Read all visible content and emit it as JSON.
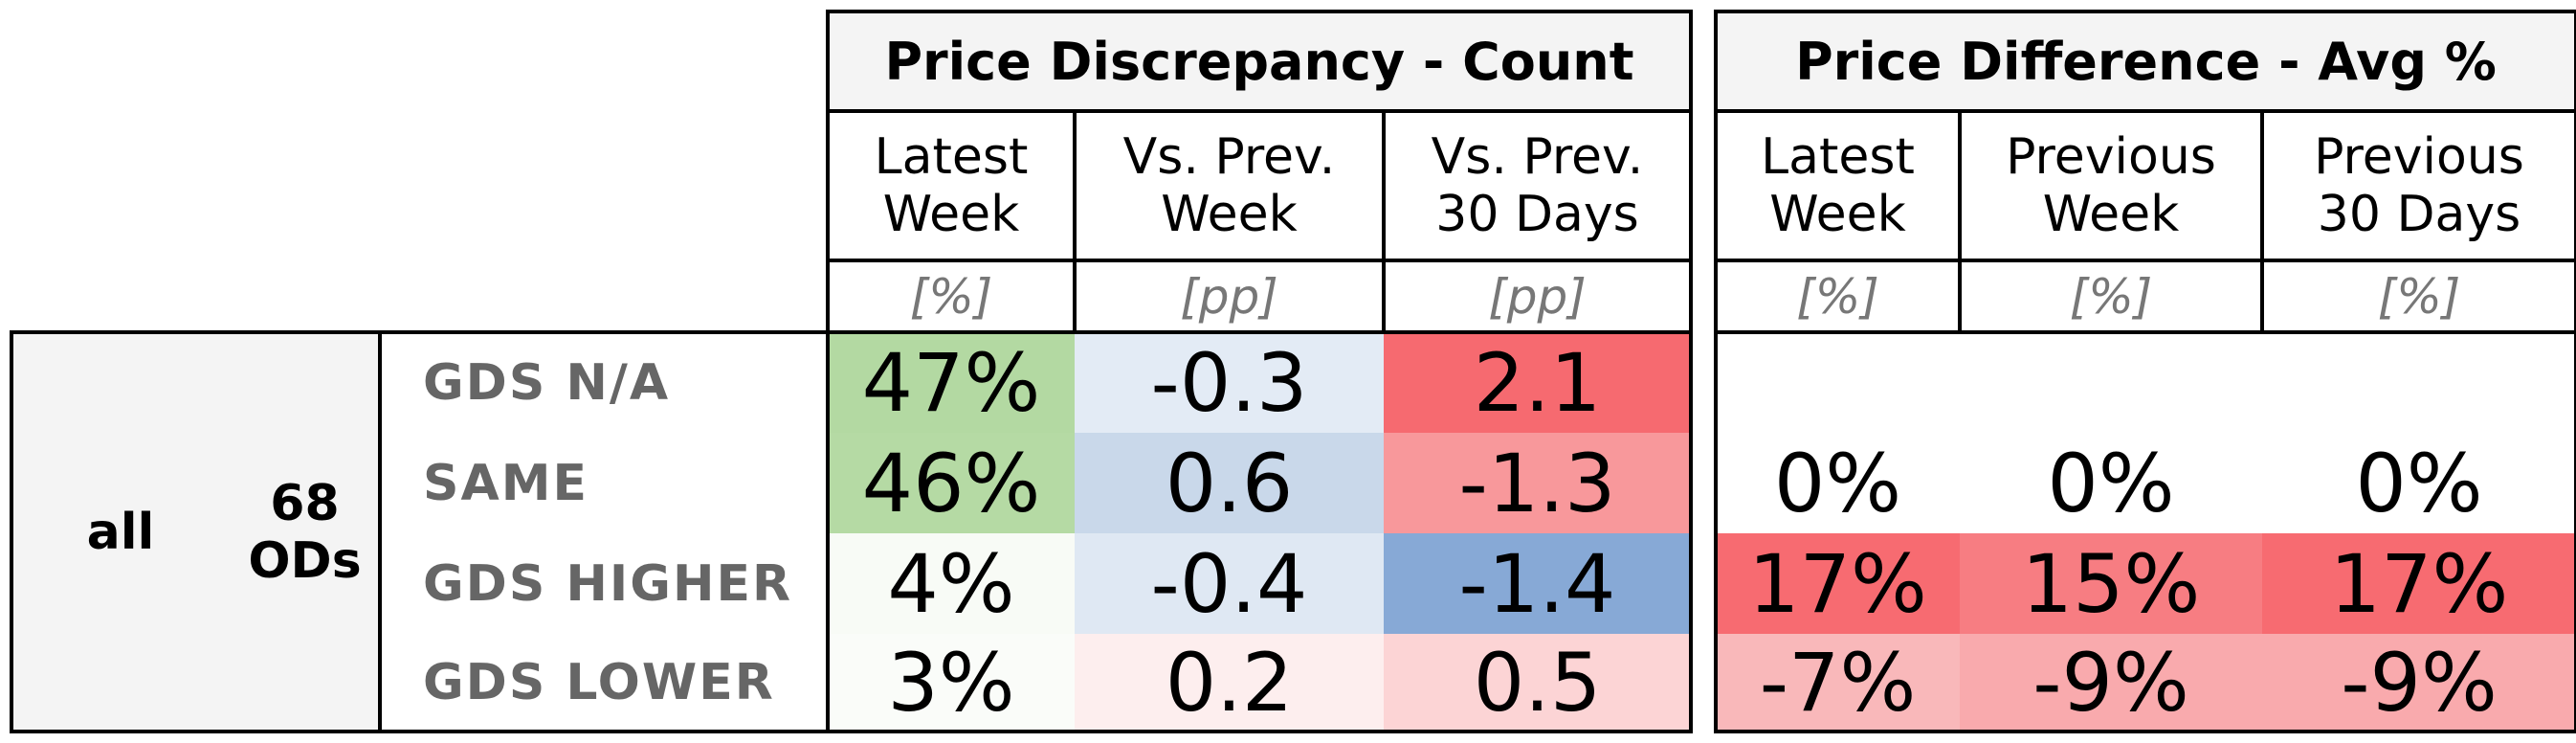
{
  "chart_data": {
    "type": "table",
    "groups": [
      {
        "title": "Price Discrepancy - Count",
        "columns": [
          {
            "header": "Latest\nWeek",
            "unit": "[%]"
          },
          {
            "header": "Vs. Prev.\nWeek",
            "unit": "[pp]"
          },
          {
            "header": "Vs. Prev.\n30 Days",
            "unit": "[pp]"
          }
        ]
      },
      {
        "title": "Price Difference - Avg %",
        "columns": [
          {
            "header": "Latest\nWeek",
            "unit": "[%]"
          },
          {
            "header": "Previous\nWeek",
            "unit": "[%]"
          },
          {
            "header": "Previous\n30 Days",
            "unit": "[%]"
          }
        ]
      }
    ],
    "segment": {
      "label": "all",
      "count_label": "68\nODs"
    },
    "rows": [
      {
        "label": "GDS N/A",
        "count": [
          {
            "text": "47%",
            "value": 47,
            "color": "#b3d9a2"
          },
          {
            "text": "-0.3",
            "value": -0.3,
            "color": "#e3ebf5"
          },
          {
            "text": "2.1",
            "value": 2.1,
            "color": "#f66a70"
          }
        ],
        "diff": [
          {
            "text": "",
            "color": "#ffffff"
          },
          {
            "text": "",
            "color": "#ffffff"
          },
          {
            "text": "",
            "color": "#ffffff"
          }
        ]
      },
      {
        "label": "SAME",
        "count": [
          {
            "text": "46%",
            "value": 46,
            "color": "#b5daa4"
          },
          {
            "text": "0.6",
            "value": 0.6,
            "color": "#c9d8ea"
          },
          {
            "text": "-1.3",
            "value": -1.3,
            "color": "#f8989b"
          }
        ],
        "diff": [
          {
            "text": "0%",
            "value": 0,
            "color": "#ffffff"
          },
          {
            "text": "0%",
            "value": 0,
            "color": "#ffffff"
          },
          {
            "text": "0%",
            "value": 0,
            "color": "#ffffff"
          }
        ]
      },
      {
        "label": "GDS HIGHER",
        "count": [
          {
            "text": "4%",
            "value": 4,
            "color": "#f8fbf6"
          },
          {
            "text": "-0.4",
            "value": -0.4,
            "color": "#dfe8f3"
          },
          {
            "text": "-1.4",
            "value": -1.4,
            "color": "#87a9d6"
          }
        ],
        "diff": [
          {
            "text": "17%",
            "value": 17,
            "color": "#f76b71"
          },
          {
            "text": "15%",
            "value": 15,
            "color": "#f77d82"
          },
          {
            "text": "17%",
            "value": 17,
            "color": "#f76b71"
          }
        ]
      },
      {
        "label": "GDS LOWER",
        "count": [
          {
            "text": "3%",
            "value": 3,
            "color": "#fafcf9"
          },
          {
            "text": "0.2",
            "value": 0.2,
            "color": "#fdeeee"
          },
          {
            "text": "0.5",
            "value": 0.5,
            "color": "#fcd4d5"
          }
        ],
        "diff": [
          {
            "text": "-7%",
            "value": -7,
            "color": "#f9b8ba"
          },
          {
            "text": "-9%",
            "value": -9,
            "color": "#f9aaad"
          },
          {
            "text": "-9%",
            "value": -9,
            "color": "#f9aaad"
          }
        ]
      }
    ],
    "colors": {
      "header_bg": "#f4f4f4",
      "label_bg": "#f4f4f4",
      "label_text": "#666666",
      "unit_text": "#777777"
    }
  }
}
